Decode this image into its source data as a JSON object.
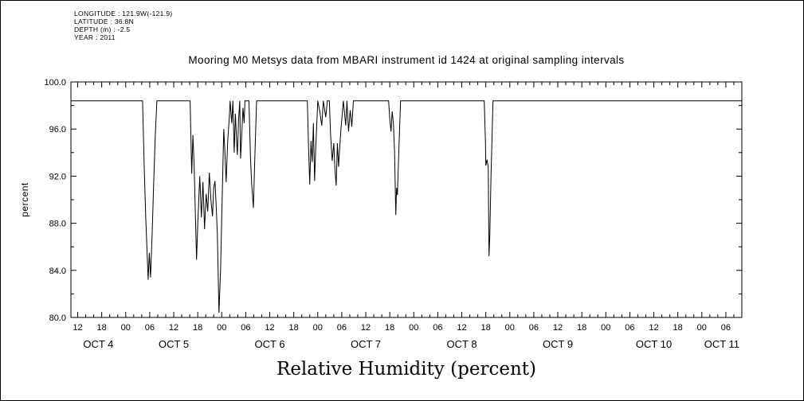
{
  "page": {
    "background": "#ffffff",
    "border_color": "#000000",
    "line_color": "#000000"
  },
  "header": {
    "lines": [
      "LONGITUDE : 121.9W(-121.9)",
      "LATITUDE : 36.8N",
      "DEPTH (m) : -2.5",
      "YEAR : 2011"
    ]
  },
  "title": "Mooring M0 Metsys data from MBARI instrument id 1424 at original sampling intervals",
  "chart_data": {
    "type": "line",
    "title": "Mooring M0 Metsys data from MBARI instrument id 1424 at original sampling intervals",
    "xlabel": "Relative Humidity (percent)",
    "ylabel": "percent",
    "ylim": [
      80.0,
      100.0
    ],
    "y_ticks": [
      80.0,
      84.0,
      88.0,
      92.0,
      96.0,
      100.0
    ],
    "y_tick_labels": [
      "80.0",
      "84.0",
      "88.0",
      "92.0",
      "96.0",
      "100.0"
    ],
    "y_minor_step": 2,
    "x_unit": "hours since 2011-10-04 00:00",
    "x_range_hours": [
      10.3,
      178.0
    ],
    "x_minor_step": 2,
    "x_ticks": {
      "start": 12,
      "step": 6,
      "labels": [
        "12",
        "18",
        "00",
        "06",
        "12",
        "18",
        "00",
        "06",
        "12",
        "18",
        "00",
        "06",
        "12",
        "18",
        "00",
        "06",
        "12",
        "18",
        "00",
        "06",
        "12",
        "18",
        "00",
        "06",
        "12",
        "18",
        "00",
        "06"
      ]
    },
    "date_labels": [
      {
        "label": "OCT 4",
        "day_start": 0
      },
      {
        "label": "OCT 5",
        "day_start": 24
      },
      {
        "label": "OCT 6",
        "day_start": 48
      },
      {
        "label": "OCT 7",
        "day_start": 72
      },
      {
        "label": "OCT 8",
        "day_start": 96
      },
      {
        "label": "OCT 9",
        "day_start": 120
      },
      {
        "label": "OCT 10",
        "day_start": 144
      },
      {
        "label": "OCT 11",
        "day_start": 168
      }
    ],
    "grid": false,
    "legend": "none",
    "line_color": "#000000",
    "baseline_value": 98.4,
    "series": [
      {
        "name": "relative_humidity_percent",
        "points": [
          [
            10.3,
            98.4
          ],
          [
            28.2,
            98.4
          ],
          [
            28.6,
            93.0
          ],
          [
            29.0,
            88.5
          ],
          [
            29.4,
            85.0
          ],
          [
            29.6,
            83.2
          ],
          [
            29.9,
            85.5
          ],
          [
            30.2,
            83.4
          ],
          [
            30.6,
            87.0
          ],
          [
            31.0,
            91.5
          ],
          [
            31.4,
            95.5
          ],
          [
            31.8,
            98.4
          ],
          [
            40.1,
            98.4
          ],
          [
            40.5,
            92.2
          ],
          [
            40.8,
            95.5
          ],
          [
            41.1,
            93.0
          ],
          [
            41.4,
            89.0
          ],
          [
            41.7,
            84.9
          ],
          [
            42.0,
            88.0
          ],
          [
            42.5,
            92.0
          ],
          [
            42.9,
            88.5
          ],
          [
            43.3,
            91.5
          ],
          [
            43.7,
            87.5
          ],
          [
            44.1,
            90.5
          ],
          [
            44.5,
            89.0
          ],
          [
            44.9,
            92.3
          ],
          [
            45.3,
            90.0
          ],
          [
            45.7,
            88.6
          ],
          [
            46.0,
            91.0
          ],
          [
            46.3,
            91.6
          ],
          [
            46.6,
            89.5
          ],
          [
            46.9,
            87.0
          ],
          [
            47.3,
            80.4
          ],
          [
            47.7,
            84.0
          ],
          [
            48.1,
            90.0
          ],
          [
            48.5,
            96.0
          ],
          [
            48.8,
            94.0
          ],
          [
            49.1,
            91.5
          ],
          [
            49.5,
            95.0
          ],
          [
            49.9,
            97.0
          ],
          [
            50.1,
            98.4
          ],
          [
            50.5,
            96.5
          ],
          [
            50.8,
            98.4
          ],
          [
            51.1,
            94.0
          ],
          [
            51.4,
            97.3
          ],
          [
            51.7,
            95.0
          ],
          [
            51.9,
            93.8
          ],
          [
            52.2,
            96.8
          ],
          [
            52.5,
            98.4
          ],
          [
            52.7,
            93.5
          ],
          [
            53.0,
            95.5
          ],
          [
            53.3,
            97.8
          ],
          [
            53.6,
            96.5
          ],
          [
            53.8,
            98.4
          ],
          [
            54.8,
            98.4
          ],
          [
            55.2,
            93.5
          ],
          [
            55.5,
            91.3
          ],
          [
            55.9,
            89.3
          ],
          [
            56.3,
            94.0
          ],
          [
            56.7,
            98.4
          ],
          [
            69.4,
            98.4
          ],
          [
            69.7,
            94.5
          ],
          [
            70.0,
            91.3
          ],
          [
            70.3,
            95.0
          ],
          [
            70.6,
            93.2
          ],
          [
            70.9,
            96.5
          ],
          [
            71.2,
            91.6
          ],
          [
            71.5,
            94.5
          ],
          [
            71.8,
            96.8
          ],
          [
            72.0,
            98.4
          ],
          [
            72.5,
            97.5
          ],
          [
            73.0,
            96.3
          ],
          [
            73.4,
            98.4
          ],
          [
            74.0,
            97.0
          ],
          [
            74.4,
            98.4
          ],
          [
            74.9,
            98.4
          ],
          [
            75.2,
            95.5
          ],
          [
            75.6,
            93.3
          ],
          [
            76.0,
            94.8
          ],
          [
            76.3,
            92.5
          ],
          [
            76.6,
            91.2
          ],
          [
            76.9,
            94.8
          ],
          [
            77.2,
            92.8
          ],
          [
            77.5,
            94.5
          ],
          [
            77.8,
            96.0
          ],
          [
            78.4,
            98.4
          ],
          [
            79.0,
            96.3
          ],
          [
            79.3,
            98.4
          ],
          [
            79.7,
            95.8
          ],
          [
            80.1,
            97.6
          ],
          [
            80.5,
            96.2
          ],
          [
            80.9,
            98.4
          ],
          [
            89.7,
            98.4
          ],
          [
            90.0,
            96.8
          ],
          [
            90.3,
            95.8
          ],
          [
            90.6,
            97.5
          ],
          [
            90.9,
            96.5
          ],
          [
            91.2,
            94.0
          ],
          [
            91.5,
            88.7
          ],
          [
            91.7,
            91.0
          ],
          [
            91.9,
            90.4
          ],
          [
            92.3,
            94.5
          ],
          [
            92.7,
            98.4
          ],
          [
            113.6,
            98.4
          ],
          [
            113.9,
            95.0
          ],
          [
            114.0,
            92.9
          ],
          [
            114.3,
            93.4
          ],
          [
            114.6,
            92.8
          ],
          [
            114.8,
            85.2
          ],
          [
            115.0,
            87.0
          ],
          [
            115.3,
            92.0
          ],
          [
            115.8,
            98.4
          ],
          [
            178.0,
            98.4
          ]
        ]
      }
    ]
  }
}
